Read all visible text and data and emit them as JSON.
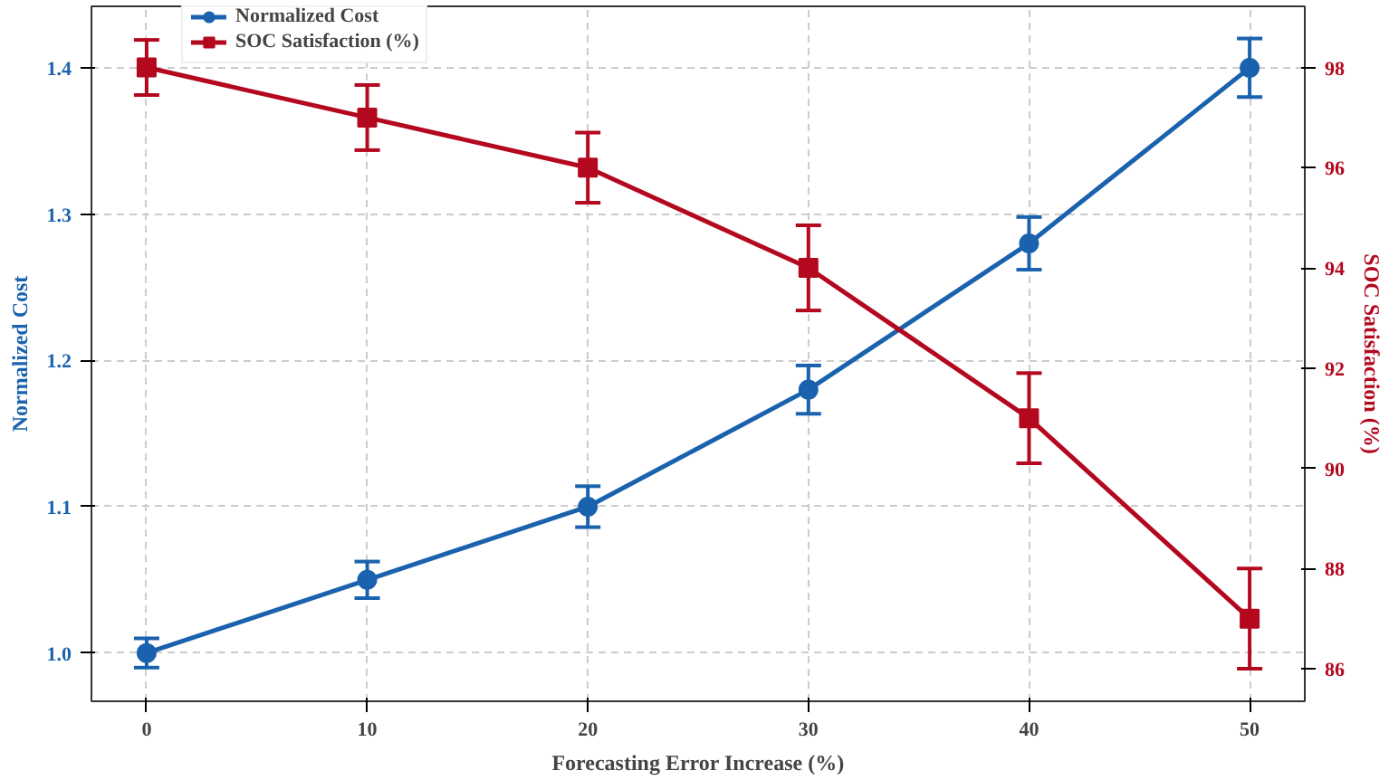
{
  "chart_data": {
    "type": "line",
    "xlabel": "Forecasting Error Increase (%)",
    "ylabel": "Normalized Cost",
    "y2label": "SOC Satisfaction (%)",
    "x": [
      0,
      10,
      20,
      30,
      40,
      50
    ],
    "series": [
      {
        "name": "Normalized Cost",
        "color": "#1a62ae",
        "marker": "circle",
        "values": [
          1.0,
          1.05,
          1.1,
          1.18,
          1.28,
          1.4
        ],
        "errors": [
          0.01,
          0.0125,
          0.014,
          0.0165,
          0.018,
          0.02
        ]
      },
      {
        "name": "SOC Satisfaction (%)",
        "color": "#b4081f",
        "marker": "square",
        "axis": "y2",
        "values": [
          98,
          97,
          96,
          94,
          91,
          87
        ],
        "errors": [
          0.55,
          0.65,
          0.7,
          0.85,
          0.9,
          1.0
        ]
      }
    ],
    "xlim": [
      -2.5,
      52.5
    ],
    "xticks": [
      0,
      10,
      20,
      30,
      40,
      50
    ],
    "ylim": [
      0.967,
      1.442
    ],
    "yticks": [
      {
        "value": 1.0,
        "label": "1.0"
      },
      1.1,
      1.2,
      1.3,
      1.4
    ],
    "y2lim": [
      85.35,
      99.22
    ],
    "y2ticks": [
      86,
      88,
      90,
      92,
      94,
      96,
      98
    ],
    "grid": true,
    "legend": "top left",
    "line_style": "solid"
  }
}
